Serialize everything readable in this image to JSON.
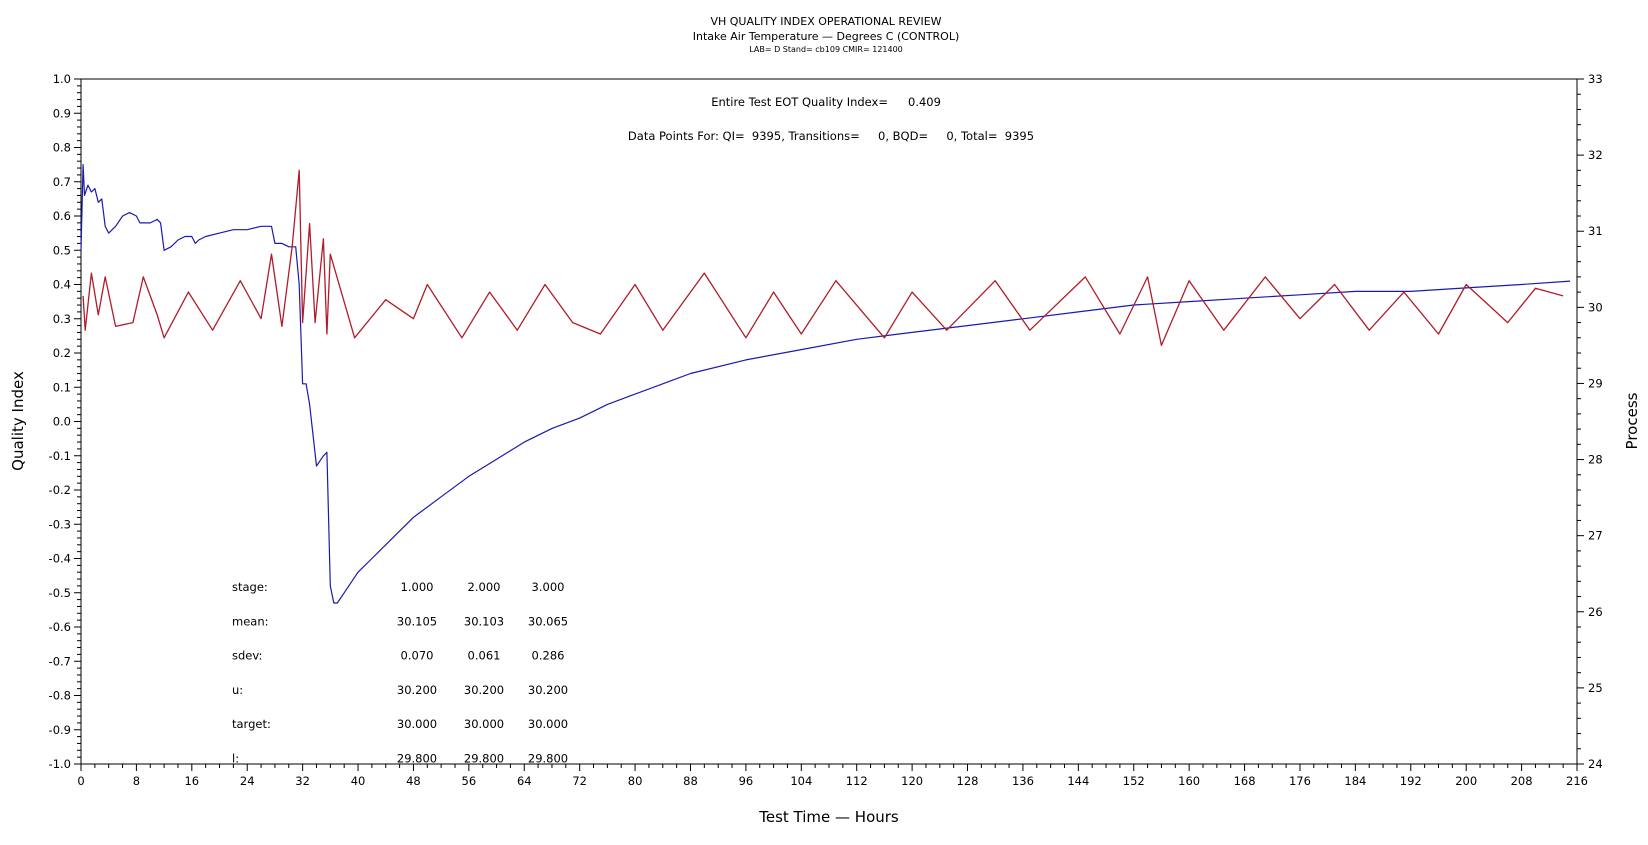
{
  "chart_data": {
    "type": "line",
    "title": "VH QUALITY INDEX OPERATIONAL REVIEW",
    "subtitle": "Intake Air Temperature — Degrees C (CONTROL)",
    "subtitle2": "LAB= D Stand= cb109 CMIR= 121400",
    "xlabel": "Test Time — Hours",
    "ylabel": "Quality Index",
    "y2label": "Process",
    "xlim": [
      0,
      216
    ],
    "ylim": [
      -1.0,
      1.0
    ],
    "y2lim": [
      24,
      33
    ],
    "x_ticks": [
      0,
      8,
      16,
      24,
      32,
      40,
      48,
      56,
      64,
      72,
      80,
      88,
      96,
      104,
      112,
      120,
      128,
      136,
      144,
      152,
      160,
      168,
      176,
      184,
      192,
      200,
      208,
      216
    ],
    "y_ticks": [
      "1.0",
      "0.9",
      "0.8",
      "0.7",
      "0.6",
      "0.5",
      "0.4",
      "0.3",
      "0.2",
      "0.1",
      "0.0",
      "-0.1",
      "-0.2",
      "-0.3",
      "-0.4",
      "-0.5",
      "-0.6",
      "-0.7",
      "-0.8",
      "-0.9",
      "-1.0"
    ],
    "y2_ticks": [
      "33",
      "32",
      "31",
      "30",
      "29",
      "28",
      "27",
      "26",
      "25",
      "24"
    ],
    "grid": false,
    "legend": "none",
    "annotations": {
      "eot_label": "Entire Test EOT Quality Index=",
      "eot_value": "0.409",
      "points_line": "Data Points For: QI=  9395, Transitions=     0, BQD=     0, Total=  9395"
    },
    "stats_table": {
      "rows": [
        {
          "label": "stage:",
          "values": [
            "1.000",
            "2.000",
            "3.000"
          ]
        },
        {
          "label": "mean:",
          "values": [
            "30.105",
            "30.103",
            "30.065"
          ]
        },
        {
          "label": "sdev:",
          "values": [
            "0.070",
            "0.061",
            "0.286"
          ]
        },
        {
          "label": "u:",
          "values": [
            "30.200",
            "30.200",
            "30.200"
          ]
        },
        {
          "label": "target:",
          "values": [
            "30.000",
            "30.000",
            "30.000"
          ]
        },
        {
          "label": "l:",
          "values": [
            "29.800",
            "29.800",
            "29.800"
          ]
        }
      ]
    },
    "series": [
      {
        "color": "#1a1ab0",
        "axis": "left",
        "x": [
          0.0,
          0.3,
          0.5,
          1.0,
          1.5,
          2.0,
          2.5,
          3.0,
          3.5,
          4.0,
          5.0,
          6.0,
          7.0,
          8.0,
          8.5,
          9.0,
          10.0,
          11.0,
          11.5,
          12.0,
          13.0,
          14.0,
          15.0,
          16.0,
          16.5,
          17.0,
          18.0,
          20.0,
          22.0,
          24.0,
          26.0,
          27.5,
          28.0,
          29.0,
          30.0,
          31.0,
          31.5,
          32.0,
          32.5,
          33.0,
          34.0,
          35.0,
          35.5,
          36.0,
          36.5,
          37.0,
          38.0,
          40.0,
          42.0,
          44.0,
          46.0,
          48.0,
          52.0,
          56.0,
          60.0,
          64.0,
          68.0,
          72.0,
          76.0,
          80.0,
          88.0,
          96.0,
          104.0,
          112.0,
          120.0,
          128.0,
          136.0,
          144.0,
          152.0,
          160.0,
          168.0,
          176.0,
          184.0,
          192.0,
          200.0,
          208.0,
          215.0
        ],
        "y": [
          0.5,
          0.75,
          0.66,
          0.69,
          0.67,
          0.68,
          0.64,
          0.65,
          0.57,
          0.55,
          0.57,
          0.6,
          0.61,
          0.6,
          0.58,
          0.58,
          0.58,
          0.59,
          0.58,
          0.5,
          0.51,
          0.53,
          0.54,
          0.54,
          0.52,
          0.53,
          0.54,
          0.55,
          0.56,
          0.56,
          0.57,
          0.57,
          0.52,
          0.52,
          0.51,
          0.51,
          0.4,
          0.11,
          0.11,
          0.05,
          -0.13,
          -0.1,
          -0.09,
          -0.48,
          -0.53,
          -0.53,
          -0.5,
          -0.44,
          -0.4,
          -0.36,
          -0.32,
          -0.28,
          -0.22,
          -0.16,
          -0.11,
          -0.06,
          -0.02,
          0.01,
          0.05,
          0.08,
          0.14,
          0.18,
          0.21,
          0.24,
          0.26,
          0.28,
          0.3,
          0.32,
          0.34,
          0.35,
          0.36,
          0.37,
          0.38,
          0.38,
          0.39,
          0.4,
          0.41
        ]
      },
      {
        "color": "#b01c2a",
        "axis": "right",
        "x": [
          0.3,
          0.6,
          1.5,
          2.5,
          3.5,
          5.0,
          7.5,
          9.0,
          11.0,
          12.0,
          15.5,
          19.0,
          23.0,
          26.0,
          27.5,
          29.0,
          30.5,
          31.5,
          32.0,
          33.0,
          33.8,
          35.0,
          35.5,
          36.0,
          39.5,
          44.0,
          48.0,
          50.0,
          55.0,
          59.0,
          63.0,
          67.0,
          71.0,
          75.0,
          80.0,
          84.0,
          90.0,
          96.0,
          100.0,
          104.0,
          109.0,
          116.0,
          120.0,
          125.0,
          132.0,
          137.0,
          145.0,
          150.0,
          154.0,
          156.0,
          160.0,
          165.0,
          171.0,
          176.0,
          181.0,
          186.0,
          191.0,
          196.0,
          200.0,
          206.0,
          210.0,
          214.0
        ],
        "y": [
          30.15,
          29.7,
          30.45,
          29.9,
          30.4,
          29.75,
          29.8,
          30.4,
          29.9,
          29.6,
          30.2,
          29.7,
          30.35,
          29.85,
          30.7,
          29.75,
          30.8,
          31.8,
          29.8,
          31.1,
          29.8,
          30.9,
          29.65,
          30.7,
          29.6,
          30.1,
          29.85,
          30.3,
          29.6,
          30.2,
          29.7,
          30.3,
          29.8,
          29.65,
          30.3,
          29.7,
          30.45,
          29.6,
          30.2,
          29.65,
          30.35,
          29.6,
          30.2,
          29.7,
          30.35,
          29.7,
          30.4,
          29.65,
          30.4,
          29.5,
          30.35,
          29.7,
          30.4,
          29.85,
          30.3,
          29.7,
          30.2,
          29.65,
          30.3,
          29.8,
          30.25,
          30.15
        ]
      }
    ]
  }
}
